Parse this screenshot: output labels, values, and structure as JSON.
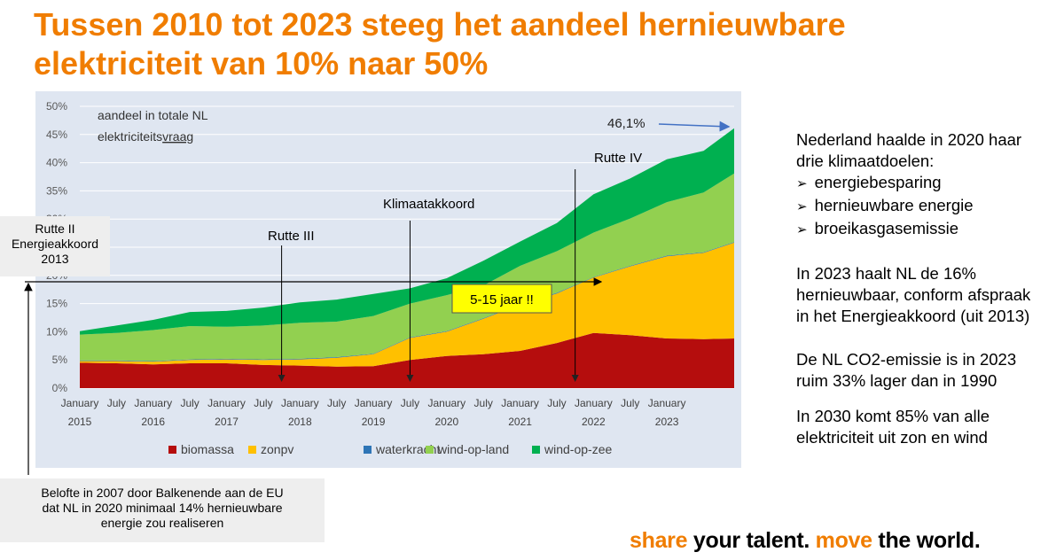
{
  "slide": {
    "title_line1": "Tussen 2010 tot 2023 steeg het aandeel hernieuwbare",
    "title_line2": "elektriciteit van 10% naar 50%"
  },
  "chart_data": {
    "type": "area",
    "stacked": true,
    "inset_label_line1": "aandeel in totale NL",
    "inset_label_line2_prefix": "elektriciteits",
    "inset_label_line2_underlined": "vraag",
    "ylim": [
      0,
      50
    ],
    "y_ticks": [
      "0%",
      "5%",
      "10%",
      "15%",
      "20%",
      "25%",
      "30%",
      "35%",
      "40%",
      "45%",
      "50%"
    ],
    "x_start": "2015-01",
    "x_end": "2023-12",
    "x_tick_labels": [
      {
        "top": "January",
        "bottom": "2015",
        "date": "2015-01"
      },
      {
        "top": "July",
        "bottom": "",
        "date": "2015-07"
      },
      {
        "top": "January",
        "bottom": "2016",
        "date": "2016-01"
      },
      {
        "top": "July",
        "bottom": "",
        "date": "2016-07"
      },
      {
        "top": "January",
        "bottom": "2017",
        "date": "2017-01"
      },
      {
        "top": "July",
        "bottom": "",
        "date": "2017-07"
      },
      {
        "top": "January",
        "bottom": "2018",
        "date": "2018-01"
      },
      {
        "top": "July",
        "bottom": "",
        "date": "2018-07"
      },
      {
        "top": "January",
        "bottom": "2019",
        "date": "2019-01"
      },
      {
        "top": "July",
        "bottom": "",
        "date": "2019-07"
      },
      {
        "top": "January",
        "bottom": "2020",
        "date": "2020-01"
      },
      {
        "top": "July",
        "bottom": "",
        "date": "2020-07"
      },
      {
        "top": "January",
        "bottom": "2021",
        "date": "2021-01"
      },
      {
        "top": "July",
        "bottom": "",
        "date": "2021-07"
      },
      {
        "top": "January",
        "bottom": "2022",
        "date": "2022-01"
      },
      {
        "top": "July",
        "bottom": "",
        "date": "2022-07"
      },
      {
        "top": "January",
        "bottom": "2023",
        "date": "2023-01"
      }
    ],
    "x": [
      "2015-01",
      "2015-07",
      "2016-01",
      "2016-07",
      "2017-01",
      "2017-07",
      "2018-01",
      "2018-07",
      "2019-01",
      "2019-07",
      "2020-01",
      "2020-07",
      "2021-01",
      "2021-07",
      "2022-01",
      "2022-07",
      "2023-01",
      "2023-07",
      "2023-12"
    ],
    "series": [
      {
        "name": "biomassa",
        "color": "#b50d0d",
        "values": [
          4.5,
          4.4,
          4.2,
          4.4,
          4.4,
          4.1,
          4.0,
          3.8,
          3.9,
          5.0,
          5.7,
          6.0,
          6.6,
          8.0,
          9.8,
          9.4,
          8.8,
          8.7,
          8.8
        ]
      },
      {
        "name": "zonpv",
        "color": "#ffc000",
        "values": [
          0.3,
          0.4,
          0.5,
          0.6,
          0.7,
          0.9,
          1.1,
          1.6,
          2.1,
          3.9,
          4.3,
          6.3,
          8.2,
          8.8,
          9.8,
          12.2,
          14.6,
          15.3,
          17.0
        ]
      },
      {
        "name": "waterkracht",
        "color": "#2e75b6",
        "values": [
          0.1,
          0.1,
          0.1,
          0.1,
          0.1,
          0.1,
          0.1,
          0.1,
          0.1,
          0.1,
          0.1,
          0.1,
          0.1,
          0.1,
          0.1,
          0.1,
          0.1,
          0.1,
          0.1
        ]
      },
      {
        "name": "wind-op-land",
        "color": "#92d050",
        "values": [
          4.6,
          4.9,
          5.5,
          5.9,
          5.7,
          6.0,
          6.4,
          6.3,
          6.7,
          6.0,
          6.4,
          5.8,
          6.8,
          7.4,
          7.9,
          8.4,
          9.5,
          10.6,
          12.2
        ]
      },
      {
        "name": "wind-op-zee",
        "color": "#00b050",
        "values": [
          0.6,
          1.3,
          1.8,
          2.5,
          2.8,
          3.2,
          3.6,
          3.9,
          3.9,
          2.7,
          3.0,
          4.4,
          4.3,
          5.0,
          6.8,
          7.1,
          7.6,
          7.4,
          8.0
        ]
      }
    ],
    "total_label": "46,1%",
    "annotations": {
      "rutte3": "Rutte III",
      "klimaatakkoord": "Klimaatakkoord",
      "rutte4": "Rutte IV",
      "period_box": "5-15 jaar !!"
    }
  },
  "callouts": {
    "rutte2_line1": "Rutte II",
    "rutte2_line2": "Energieakkoord",
    "rutte2_line3": "2013",
    "promise_line1": "Belofte in 2007 door Balkenende aan de EU",
    "promise_line2": "dat NL in 2020 minimaal 14% hernieuwbare",
    "promise_line3": "energie zou realiseren"
  },
  "right_text": {
    "p1_line1": "Nederland haalde in 2020 haar",
    "p1_line2": "drie klimaatdoelen:",
    "bullets": [
      "energiebesparing",
      "hernieuwbare energie",
      "broeikasgasemissie"
    ],
    "p2_line1": "In 2023 haalt NL de 16%",
    "p2_line2": "hernieuwbaar, conform afspraak",
    "p2_line3": "in het Energieakkoord (uit 2013)",
    "p3_line1": "De NL CO2-emissie is in 2023",
    "p3_line2": "ruim 33% lager dan in 1990",
    "p4_line1": "In 2030 komt 85% van alle",
    "p4_line2": "elektriciteit uit zon en wind"
  },
  "footer": {
    "part1": "share",
    "part2": " your talent.",
    "part3": " move",
    "part4": " the world."
  },
  "colors": {
    "accent_orange": "#f07d00",
    "chart_background": "#dfe6f1",
    "highlight_yellow": "#ffff00"
  }
}
